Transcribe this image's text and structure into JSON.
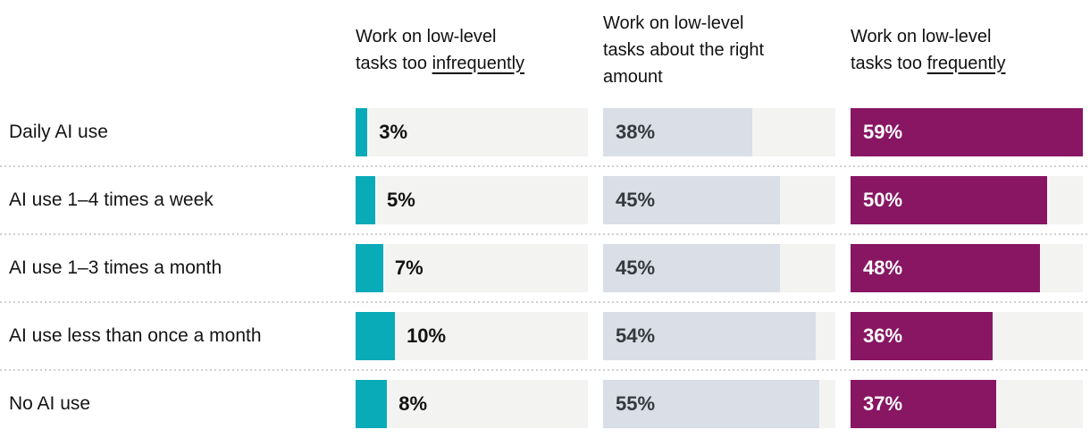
{
  "headers": [
    {
      "line1": "Work on low-level",
      "line2_prefix": "tasks too ",
      "line2_underlined": "infrequently",
      "line3": ""
    },
    {
      "line1": "Work on low-level",
      "line2_prefix": "tasks about the right",
      "line2_underlined": "",
      "line3": "amount"
    },
    {
      "line1": "Work on low-level",
      "line2_prefix": "tasks too ",
      "line2_underlined": "frequently",
      "line3": ""
    }
  ],
  "chart_data": {
    "type": "bar",
    "orientation": "horizontal",
    "categories": [
      "Daily AI use",
      "AI use 1–4 times a week",
      "AI use 1–3 times a month",
      "AI use less than once a month",
      "No AI use"
    ],
    "series": [
      {
        "name": "Work on low-level tasks too infrequently",
        "underlined_word": "infrequently",
        "color": "#0aabb8",
        "label_style": "outside-dark",
        "values": [
          3,
          5,
          7,
          10,
          8
        ]
      },
      {
        "name": "Work on low-level tasks about the right amount",
        "underlined_word": "",
        "color": "#d9dee7",
        "label_style": "inside-dark",
        "values": [
          38,
          45,
          45,
          54,
          55
        ]
      },
      {
        "name": "Work on low-level tasks too frequently",
        "underlined_word": "frequently",
        "color": "#881663",
        "label_style": "inside-white",
        "values": [
          59,
          50,
          48,
          36,
          37
        ]
      }
    ],
    "value_suffix": "%",
    "xmax": 59,
    "track_color": "#f3f3f2",
    "separator_color": "#cfcfcf",
    "legend_position": "column-headers",
    "grid": false
  }
}
